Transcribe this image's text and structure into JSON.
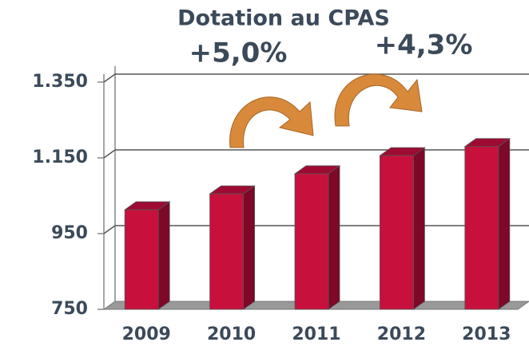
{
  "chart_data": {
    "type": "bar3d",
    "title": "Dotation au CPAS",
    "annotations": [
      "+5,0%",
      "+4,3%"
    ],
    "categories": [
      "2009",
      "2010",
      "2011",
      "2012",
      "2013"
    ],
    "values": [
      1013,
      1055,
      1108,
      1156,
      1180
    ],
    "color": "#c8103c",
    "ylim": [
      750,
      1350
    ],
    "yticks": [
      750,
      950,
      {
        "value": 1150,
        "label": "1.150"
      },
      {
        "value": 1350,
        "label": "1.350"
      }
    ],
    "grid": true
  }
}
